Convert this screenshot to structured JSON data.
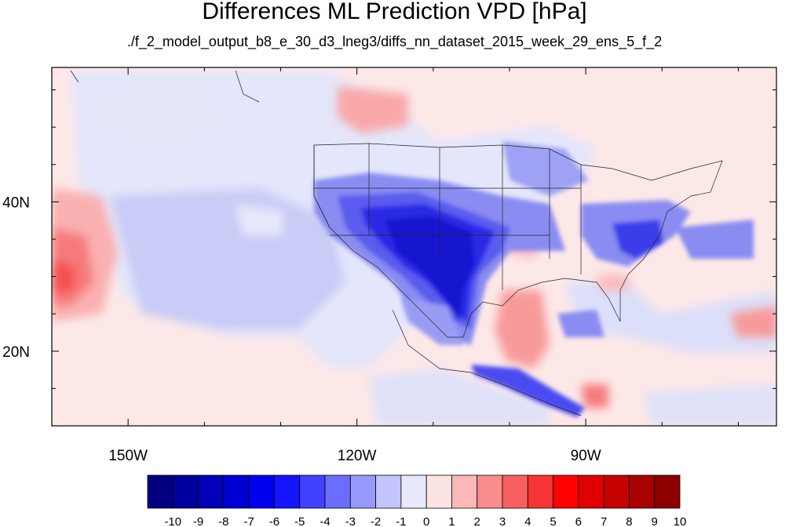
{
  "title": "Differences ML Prediction VPD [hPa]",
  "subtitle": "./f_2_model_output_b8_e_30_d3_lneg3/diffs_nn_dataset_2015_week_29_ens_5_f_2",
  "map": {
    "lon_range": [
      -160,
      -65
    ],
    "lat_range": [
      10,
      58
    ],
    "lon_ticks": [
      {
        "value": -150,
        "label": "150W"
      },
      {
        "value": -120,
        "label": "120W"
      },
      {
        "value": -90,
        "label": "90W"
      }
    ],
    "lat_ticks": [
      {
        "value": 40,
        "label": "40N"
      },
      {
        "value": 20,
        "label": "20N"
      }
    ]
  },
  "colorbar": {
    "labels": [
      "-10",
      "-9",
      "-8",
      "-7",
      "-6",
      "-5",
      "-4",
      "-3",
      "-2",
      "-1",
      "0",
      "1",
      "2",
      "3",
      "4",
      "5",
      "6",
      "7",
      "8",
      "9",
      "10"
    ],
    "colors": [
      "#000080",
      "#00009c",
      "#0000b8",
      "#0000d4",
      "#0000f0",
      "#1414ff",
      "#4040ff",
      "#6c6cff",
      "#9898ff",
      "#c4c4ff",
      "#e8e8fa",
      "#fde4e4",
      "#fcb8b8",
      "#fa8c8c",
      "#f86060",
      "#f63434",
      "#ff0000",
      "#e00000",
      "#c40000",
      "#a80000",
      "#8c0000"
    ]
  }
}
